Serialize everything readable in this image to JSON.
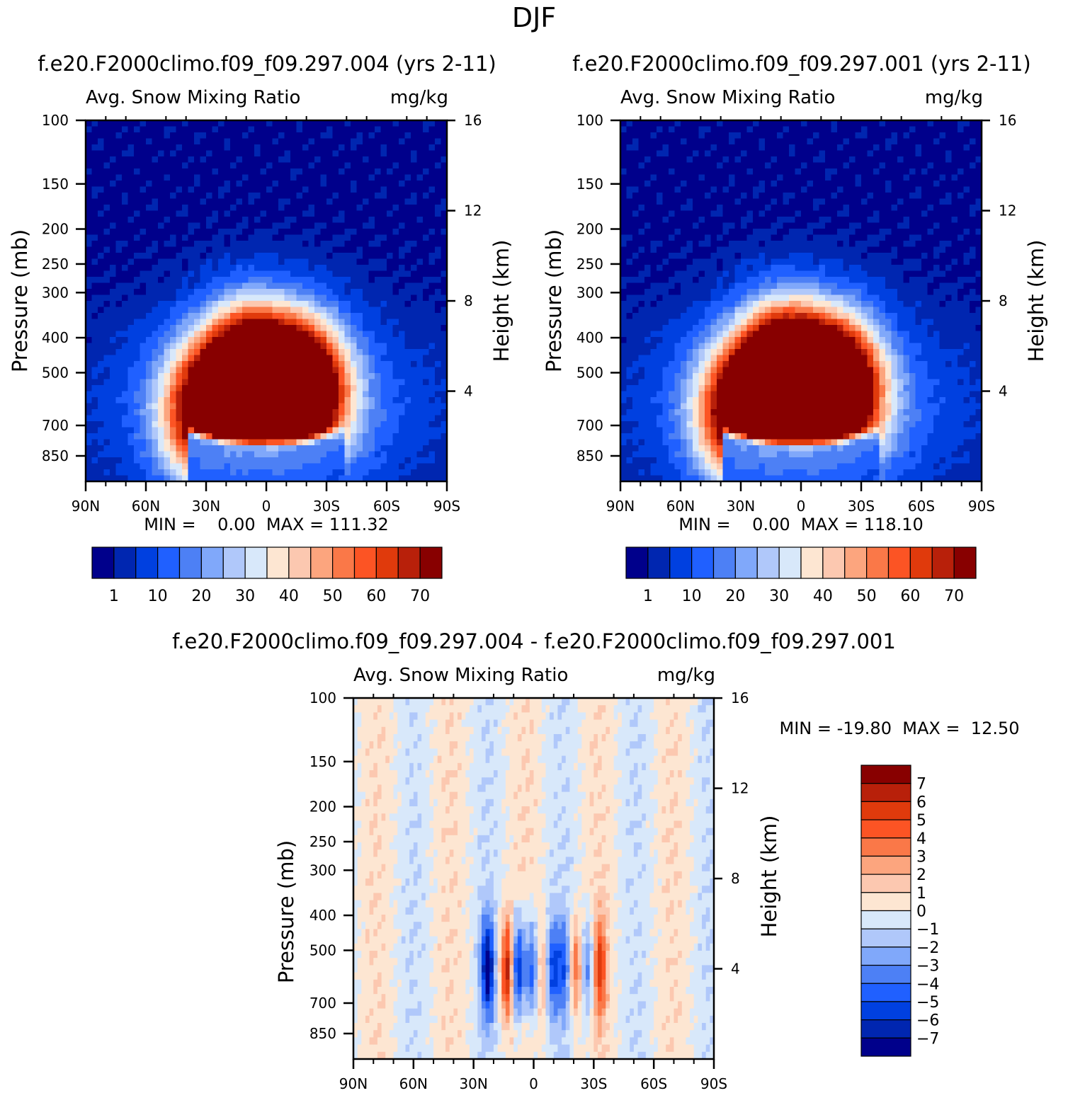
{
  "page_title": "DJF",
  "colors": {
    "abs_levels": [
      "#00008b",
      "#0026b0",
      "#0040e0",
      "#2060ff",
      "#4d80f5",
      "#80a8fa",
      "#b0c8fa",
      "#d8e8fa",
      "#fde6d2",
      "#fcc8b0",
      "#fca57e",
      "#fa7848",
      "#fc5424",
      "#e03a0c",
      "#b8200a",
      "#880000"
    ],
    "diff_levels": [
      "#00008b",
      "#0026b0",
      "#0040e0",
      "#2060ff",
      "#4d80f5",
      "#80a8fa",
      "#b0c8fa",
      "#d8e8fa",
      "#fde6d2",
      "#fcc8b0",
      "#fca57e",
      "#fa7848",
      "#fc5424",
      "#e03a0c",
      "#b8200a",
      "#880000"
    ]
  },
  "chart_data": [
    {
      "id": "left",
      "type": "heatmap",
      "case_title": "f.e20.F2000climo.f09_f09.297.004 (yrs 2-11)",
      "left_title": "Avg. Snow Mixing Ratio",
      "right_title": "mg/kg",
      "ylabel": "Pressure (mb)",
      "ylabel_right": "Height (km)",
      "y_ticks": [
        "100",
        "150",
        "200",
        "250",
        "300",
        "400",
        "500",
        "700",
        "850"
      ],
      "y_ticks_right": [
        "16",
        "12",
        "8",
        "4"
      ],
      "x_ticks": [
        "90N",
        "60N",
        "30N",
        "0",
        "30S",
        "60S",
        "90S"
      ],
      "ylim": [
        100,
        1000
      ],
      "xlim": [
        90,
        -90
      ],
      "min_max_text": "MIN =    0.00  MAX = 111.32",
      "colorbar_labels": [
        "1",
        "10",
        "20",
        "30",
        "40",
        "50",
        "60",
        "70"
      ],
      "colorbar_orientation": "horizontal",
      "fields": {
        "peaks": [
          {
            "lat": 30,
            "p": 650,
            "value": 70
          },
          {
            "lat": 8,
            "p": 520,
            "value": 111.32
          },
          {
            "lat": -18,
            "p": 560,
            "value": 100
          }
        ]
      }
    },
    {
      "id": "right",
      "type": "heatmap",
      "case_title": "f.e20.F2000climo.f09_f09.297.001 (yrs 2-11)",
      "left_title": "Avg. Snow Mixing Ratio",
      "right_title": "mg/kg",
      "ylabel": "Pressure (mb)",
      "ylabel_right": "Height (km)",
      "y_ticks": [
        "100",
        "150",
        "200",
        "250",
        "300",
        "400",
        "500",
        "700",
        "850"
      ],
      "y_ticks_right": [
        "16",
        "12",
        "8",
        "4"
      ],
      "x_ticks": [
        "90N",
        "60N",
        "30N",
        "0",
        "30S",
        "60S",
        "90S"
      ],
      "ylim": [
        100,
        1000
      ],
      "xlim": [
        90,
        -90
      ],
      "min_max_text": "MIN =    0.00  MAX = 118.10",
      "colorbar_labels": [
        "1",
        "10",
        "20",
        "30",
        "40",
        "50",
        "60",
        "70"
      ],
      "colorbar_orientation": "horizontal",
      "fields": {
        "peaks": [
          {
            "lat": 30,
            "p": 650,
            "value": 72
          },
          {
            "lat": 8,
            "p": 520,
            "value": 118.1
          },
          {
            "lat": -18,
            "p": 560,
            "value": 105
          }
        ]
      }
    },
    {
      "id": "diff",
      "type": "heatmap",
      "case_title": "f.e20.F2000climo.f09_f09.297.004 - f.e20.F2000climo.f09_f09.297.001",
      "left_title": "Avg. Snow Mixing Ratio",
      "right_title": "mg/kg",
      "ylabel": "Pressure (mb)",
      "ylabel_right": "Height (km)",
      "y_ticks": [
        "100",
        "150",
        "200",
        "250",
        "300",
        "400",
        "500",
        "700",
        "850"
      ],
      "y_ticks_right": [
        "16",
        "12",
        "8",
        "4"
      ],
      "x_ticks": [
        "90N",
        "60N",
        "30N",
        "0",
        "30S",
        "60S",
        "90S"
      ],
      "ylim": [
        100,
        1000
      ],
      "xlim": [
        90,
        -90
      ],
      "min_max_text": "MIN = -19.80  MAX =  12.50",
      "colorbar_labels": [
        "7",
        "6",
        "5",
        "4",
        "3",
        "2",
        "1",
        "0",
        "-1",
        "-2",
        "-3",
        "-4",
        "-5",
        "-6",
        "-7"
      ],
      "colorbar_orientation": "vertical",
      "fields": {
        "dipoles": [
          {
            "lat": 23,
            "value": -7
          },
          {
            "lat": 13,
            "value": 7
          },
          {
            "lat": 8,
            "value": -7
          },
          {
            "lat": 1,
            "value": -5
          },
          {
            "lat": -5,
            "value": 3
          },
          {
            "lat": -9,
            "value": -5
          },
          {
            "lat": -15,
            "value": -4
          },
          {
            "lat": -21,
            "value": 4
          },
          {
            "lat": -27,
            "value": -4
          },
          {
            "lat": -33,
            "value": 5
          }
        ]
      }
    }
  ]
}
